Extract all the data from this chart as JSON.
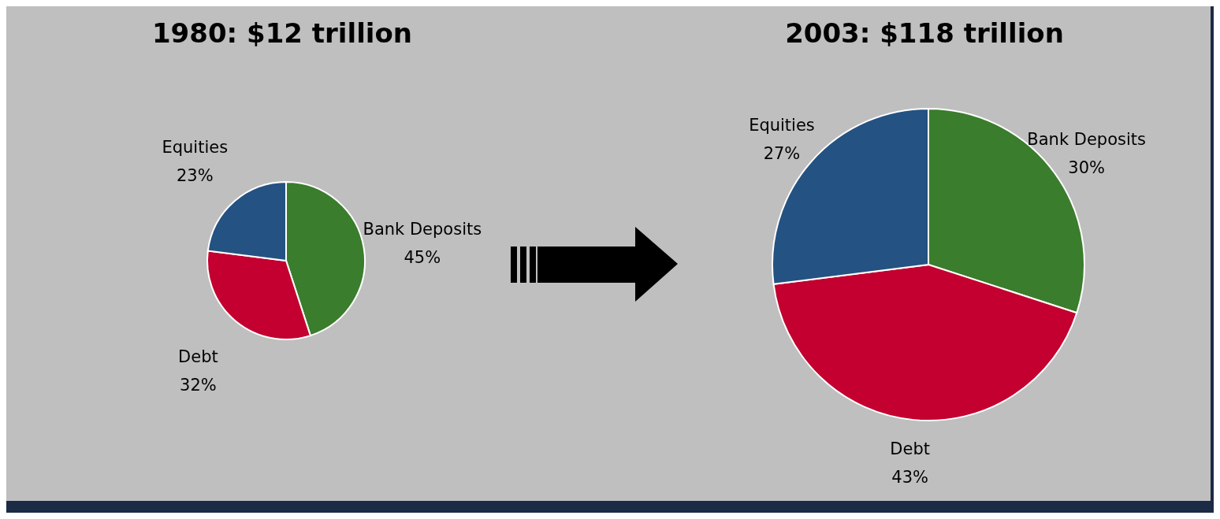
{
  "chart_data": [
    {
      "type": "pie",
      "title": "1980: $12 trillion",
      "categories": [
        "Bank Deposits",
        "Debt",
        "Equities"
      ],
      "values": [
        45,
        32,
        23
      ],
      "colors": [
        "#3a7d2c",
        "#c3002f",
        "#245282"
      ],
      "value_labels": [
        "45%",
        "32%",
        "23%"
      ]
    },
    {
      "type": "pie",
      "title": "2003: $118 trillion",
      "categories": [
        "Bank Deposits",
        "Debt",
        "Equities"
      ],
      "values": [
        30,
        43,
        27
      ],
      "colors": [
        "#3a7d2c",
        "#c3002f",
        "#245282"
      ],
      "value_labels": [
        "30%",
        "43%",
        "27%"
      ]
    }
  ]
}
